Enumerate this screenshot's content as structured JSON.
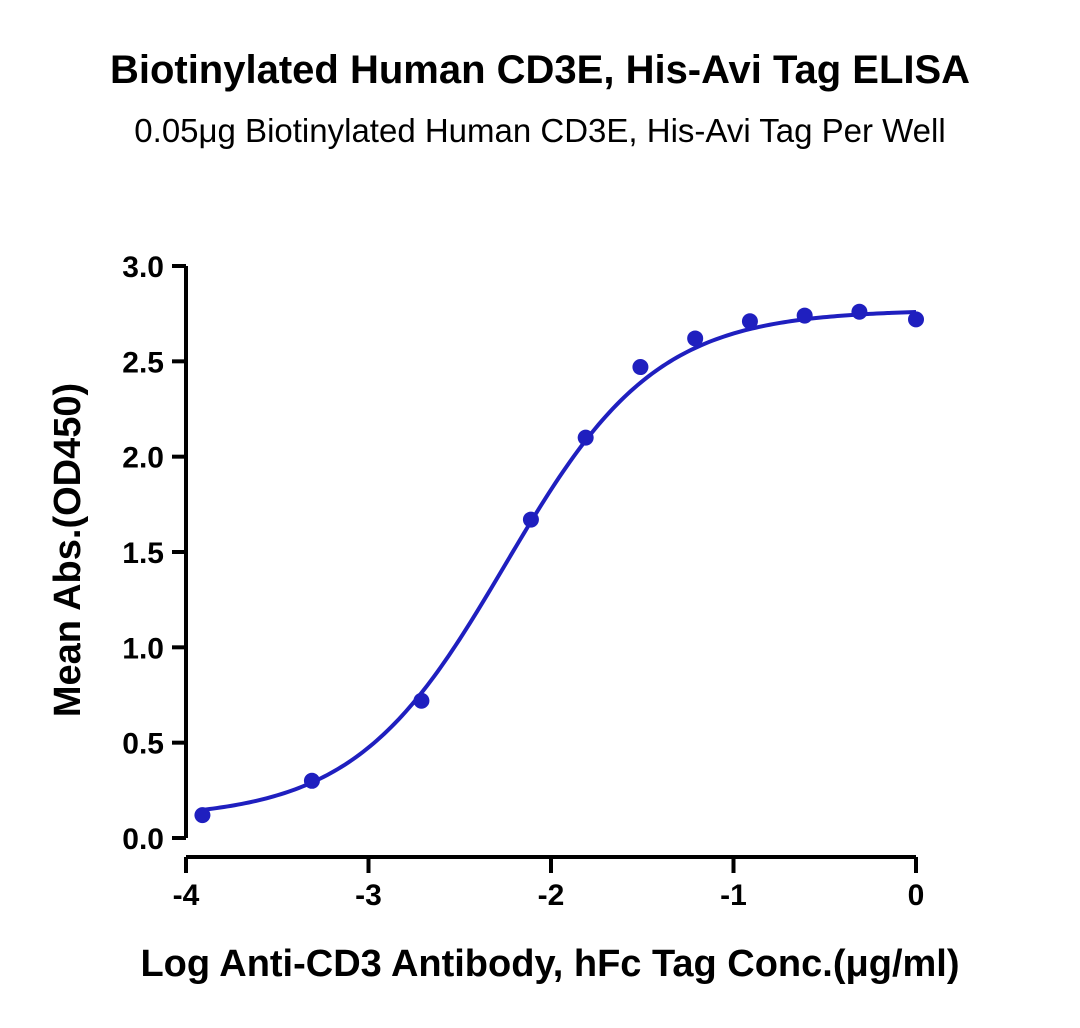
{
  "chart_data": {
    "type": "scatter",
    "title": "Biotinylated Human CD3E, His-Avi Tag ELISA",
    "subtitle": "0.05μg Biotinylated Human CD3E, His-Avi Tag Per Well",
    "xlabel": "Log Anti-CD3 Antibody, hFc Tag Conc.(μg/ml)",
    "ylabel": "Mean Abs.(OD450)",
    "xlim": [
      -4,
      0
    ],
    "ylim": [
      0,
      3.0
    ],
    "xticks": [
      -4,
      -3,
      -2,
      -1,
      0
    ],
    "xtick_labels": [
      "-4",
      "-3",
      "-2",
      "-1",
      "0"
    ],
    "yticks": [
      0,
      0.5,
      1.0,
      1.5,
      2.0,
      2.5,
      3.0
    ],
    "ytick_labels": [
      "0.0",
      "0.5",
      "1.0",
      "1.5",
      "2.0",
      "2.5",
      "3.0"
    ],
    "grid": false,
    "color": "#1f1fbf",
    "series": [
      {
        "x": [
          -3.91,
          -3.31,
          -2.71,
          -2.11,
          -1.81,
          -1.51,
          -1.21,
          -0.91,
          -0.61,
          -0.31,
          0.0
        ],
        "y": [
          0.12,
          0.3,
          0.72,
          1.67,
          2.1,
          2.47,
          2.62,
          2.71,
          2.74,
          2.76,
          2.72
        ]
      }
    ],
    "fit": {
      "bottom": 0.1,
      "top": 2.77,
      "logEC50": -2.25,
      "hill": 1.05
    }
  }
}
